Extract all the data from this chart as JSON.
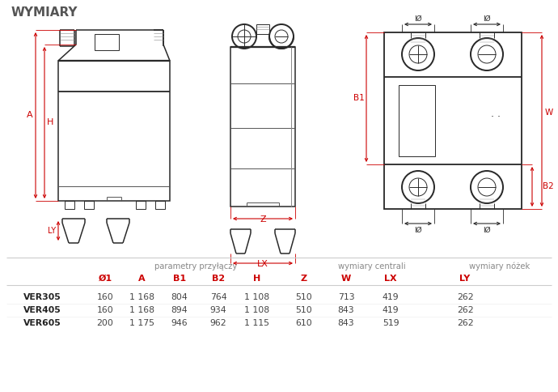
{
  "title": "WYMIARY",
  "title_color": "#555555",
  "title_fontsize": 11,
  "bg_color": "#ffffff",
  "header1": "parametry przyłączy",
  "header2": "wymiary centrali",
  "header3": "wymiary nóżek",
  "col_headers": [
    "Ø1",
    "A",
    "B1",
    "B2",
    "H",
    "Z",
    "W",
    "LX",
    "LY"
  ],
  "col_headers_color": "#cc0000",
  "rows": [
    {
      "name": "VER305",
      "vals": [
        "160",
        "1 168",
        "804",
        "764",
        "1 108",
        "510",
        "713",
        "419",
        "262"
      ]
    },
    {
      "name": "VER405",
      "vals": [
        "160",
        "1 168",
        "894",
        "934",
        "1 108",
        "510",
        "843",
        "419",
        "262"
      ]
    },
    {
      "name": "VER605",
      "vals": [
        "200",
        "1 175",
        "946",
        "962",
        "1 115",
        "610",
        "843",
        "519",
        "262"
      ]
    }
  ],
  "dim_label_color": "#cc0000",
  "line_color": "#2a2a2a",
  "med_line_color": "#555555",
  "table_header_color": "#888888",
  "table_line_color": "#cccccc"
}
